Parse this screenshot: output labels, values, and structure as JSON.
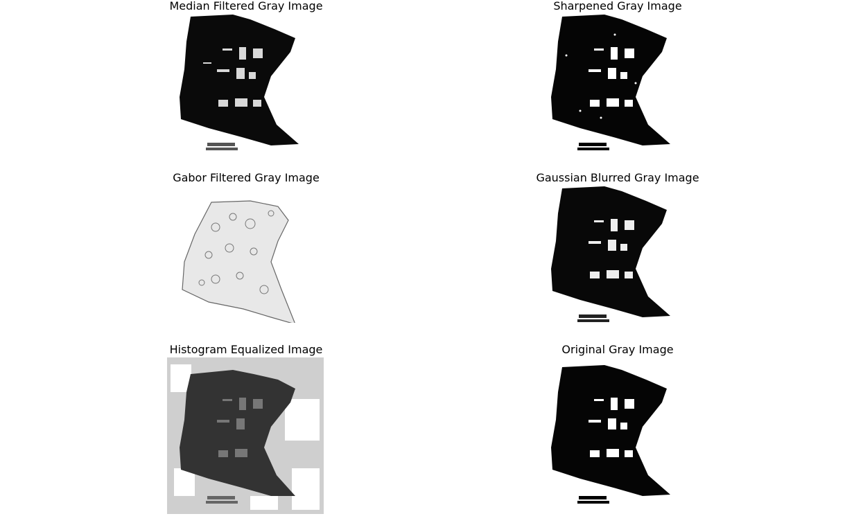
{
  "panels": [
    {
      "id": "median",
      "title": "Median Filtered Gray Image",
      "rendering": "dark"
    },
    {
      "id": "sharp",
      "title": "Sharpened Gray Image",
      "rendering": "dark-speckled"
    },
    {
      "id": "gabor",
      "title": "Gabor Filtered Gray Image",
      "rendering": "light-textured"
    },
    {
      "id": "gauss",
      "title": "Gaussian Blurred Gray Image",
      "rendering": "dark-speckled"
    },
    {
      "id": "hist",
      "title": "Histogram Equalized Image",
      "rendering": "gray-noisy"
    },
    {
      "id": "orig",
      "title": "Original Gray Image",
      "rendering": "dark-speckled"
    }
  ],
  "colors": {
    "background": "#ffffff",
    "ink": "#000000"
  }
}
